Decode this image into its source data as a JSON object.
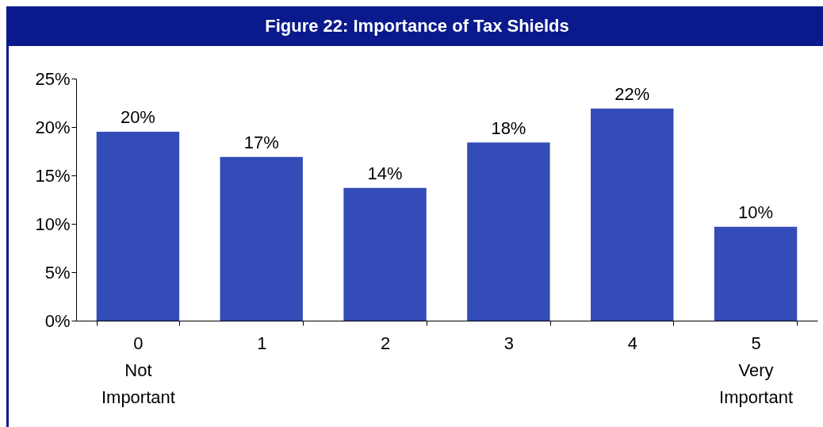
{
  "chart_data": {
    "type": "bar",
    "title": "Figure 22: Importance of Tax Shields",
    "categories": [
      "0 Not Important",
      "1",
      "2",
      "3",
      "4",
      "5 Very Important"
    ],
    "values": [
      19.5,
      16.9,
      13.7,
      18.4,
      21.9,
      9.7
    ],
    "value_labels": [
      "20%",
      "17%",
      "14%",
      "18%",
      "22%",
      "10%"
    ],
    "color": "#344cb8",
    "ylim": [
      0,
      25
    ],
    "yticks": [
      {
        "value": 0,
        "label": "0%"
      },
      {
        "value": 5,
        "label": "5%"
      },
      {
        "value": 10,
        "label": "10%"
      },
      {
        "value": 15,
        "label": "15%"
      },
      {
        "value": 20,
        "label": "20%"
      },
      {
        "value": 25,
        "label": "25%"
      }
    ],
    "grid": false
  }
}
